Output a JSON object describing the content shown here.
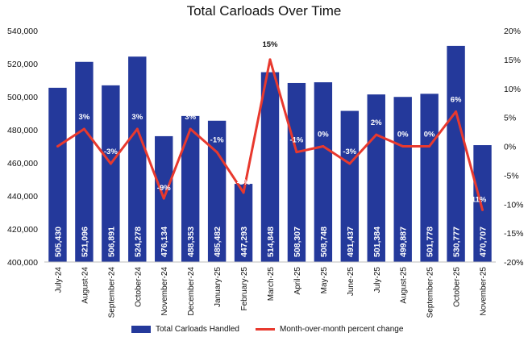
{
  "chart_data": {
    "type": "bar",
    "title": "Total Carloads Over Time",
    "categories": [
      "July-24",
      "August-24",
      "September-24",
      "October-24",
      "November-24",
      "December-24",
      "January-25",
      "February-25",
      "March-25",
      "April-25",
      "May-25",
      "June-25",
      "July-25",
      "August-25",
      "September-25",
      "October-25",
      "November-25"
    ],
    "series": [
      {
        "name": "Total Carloads Handled",
        "type": "bar",
        "axis": "left",
        "values": [
          505430,
          521096,
          506891,
          524278,
          476134,
          488353,
          485482,
          447293,
          514848,
          508307,
          508748,
          491437,
          501384,
          499887,
          501778,
          530777,
          470707
        ],
        "labels": [
          "505,430",
          "521,096",
          "506,891",
          "524,278",
          "476,134",
          "488,353",
          "485,482",
          "447,293",
          "514,848",
          "508,307",
          "508,748",
          "491,437",
          "501,384",
          "499,887",
          "501,778",
          "530,777",
          "470,707"
        ],
        "color": "#24399B"
      },
      {
        "name": "Month-over-month percent change",
        "type": "line",
        "axis": "right",
        "values": [
          0,
          3,
          -3,
          3,
          -9,
          3,
          -1,
          -8,
          15,
          -1,
          0,
          -3,
          2,
          0,
          0,
          6,
          -11
        ],
        "labels": [
          "",
          "3%",
          "-3%",
          "3%",
          "-9%",
          "3%",
          "-1%",
          "-8%",
          "15%",
          "-1%",
          "0%",
          "-3%",
          "2%",
          "0%",
          "0%",
          "6%",
          "-11%"
        ],
        "color": "#E8392E"
      }
    ],
    "ylim": [
      400000,
      540000
    ],
    "yticks": [
      "400,000",
      "420,000",
      "440,000",
      "460,000",
      "480,000",
      "500,000",
      "520,000",
      "540,000"
    ],
    "y2lim": [
      -20,
      20
    ],
    "y2ticks": [
      "-20%",
      "-15%",
      "-10%",
      "-5%",
      "0%",
      "5%",
      "10%",
      "15%",
      "20%"
    ],
    "legend_position": "bottom",
    "grid": false
  }
}
